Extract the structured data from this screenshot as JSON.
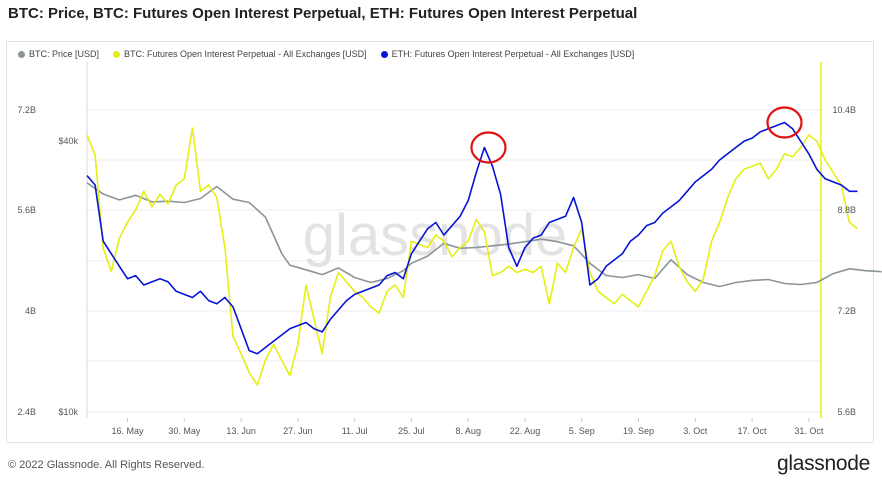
{
  "title": "BTC: Price, BTC: Futures Open Interest Perpetual, ETH: Futures Open Interest Perpetual",
  "footer": "© 2022 Glassnode. All Rights Reserved.",
  "logo": "glassnode",
  "watermark": "glassnode",
  "colors": {
    "price": "#8c9599",
    "btc_oi": "#e5ef12",
    "eth_oi": "#0714d6",
    "highlight": "#e01010"
  },
  "chart_data": {
    "type": "line",
    "x_ticks": [
      "16. May",
      "30. May",
      "13. Jun",
      "27. Jun",
      "11. Jul",
      "25. Jul",
      "8. Aug",
      "22. Aug",
      "5. Sep",
      "19. Sep",
      "3. Oct",
      "17. Oct",
      "31. Oct"
    ],
    "y_left_oi": {
      "ticks": [
        "7.2B",
        "5.6B",
        "4B",
        "2.4B"
      ]
    },
    "y_left_price": {
      "ticks": [
        "$40k",
        "$10k"
      ],
      "scale": "log"
    },
    "y_right": {
      "ticks": [
        "10.4B",
        "8.8B",
        "7.2B",
        "5.6B"
      ]
    },
    "grid": true,
    "legend_position": "top-left",
    "x_range": [
      "2022-05-06",
      "2022-11-03"
    ],
    "series": [
      {
        "name": "BTC: Price [USD]",
        "axis": "price",
        "values": [
          [
            0,
            32300
          ],
          [
            4,
            30500
          ],
          [
            8,
            29600
          ],
          [
            12,
            30300
          ],
          [
            16,
            29300
          ],
          [
            20,
            29400
          ],
          [
            24,
            29200
          ],
          [
            28,
            29800
          ],
          [
            32,
            31700
          ],
          [
            36,
            29700
          ],
          [
            40,
            29200
          ],
          [
            44,
            27100
          ],
          [
            48,
            22500
          ],
          [
            50,
            21200
          ],
          [
            54,
            20700
          ],
          [
            58,
            20200
          ],
          [
            62,
            20900
          ],
          [
            66,
            19900
          ],
          [
            70,
            19400
          ],
          [
            74,
            19800
          ],
          [
            78,
            20600
          ],
          [
            80,
            21400
          ],
          [
            84,
            22200
          ],
          [
            88,
            23700
          ],
          [
            92,
            23100
          ],
          [
            96,
            23200
          ],
          [
            100,
            23400
          ],
          [
            104,
            23600
          ],
          [
            108,
            23900
          ],
          [
            112,
            24200
          ],
          [
            116,
            23900
          ],
          [
            120,
            23400
          ],
          [
            124,
            21400
          ],
          [
            128,
            20100
          ],
          [
            132,
            19900
          ],
          [
            136,
            20200
          ],
          [
            140,
            19800
          ],
          [
            144,
            21800
          ],
          [
            148,
            20200
          ],
          [
            152,
            19400
          ],
          [
            156,
            19000
          ],
          [
            160,
            19400
          ],
          [
            164,
            19600
          ],
          [
            168,
            19700
          ],
          [
            172,
            19300
          ],
          [
            176,
            19200
          ],
          [
            180,
            19400
          ],
          [
            184,
            20300
          ],
          [
            188,
            20800
          ],
          [
            192,
            20600
          ],
          [
            196,
            20500
          ]
        ]
      },
      {
        "name": "BTC: Futures Open Interest Perpetual - All Exchanges [USD]",
        "axis": "oi",
        "values": [
          [
            0,
            6.8
          ],
          [
            2,
            6.48
          ],
          [
            4,
            4.99
          ],
          [
            6,
            4.62
          ],
          [
            8,
            5.15
          ],
          [
            10,
            5.41
          ],
          [
            12,
            5.6
          ],
          [
            14,
            5.9
          ],
          [
            16,
            5.65
          ],
          [
            18,
            5.85
          ],
          [
            20,
            5.7
          ],
          [
            22,
            6.0
          ],
          [
            24,
            6.1
          ],
          [
            26,
            6.91
          ],
          [
            28,
            5.9
          ],
          [
            30,
            6.0
          ],
          [
            32,
            5.8
          ],
          [
            34,
            5.0
          ],
          [
            36,
            3.58
          ],
          [
            38,
            3.3
          ],
          [
            40,
            3.0
          ],
          [
            42,
            2.8
          ],
          [
            44,
            3.2
          ],
          [
            46,
            3.45
          ],
          [
            48,
            3.2
          ],
          [
            50,
            2.95
          ],
          [
            52,
            3.45
          ],
          [
            54,
            4.4
          ],
          [
            56,
            3.85
          ],
          [
            58,
            3.3
          ],
          [
            60,
            4.2
          ],
          [
            62,
            4.6
          ],
          [
            64,
            4.45
          ],
          [
            66,
            4.3
          ],
          [
            68,
            4.2
          ],
          [
            70,
            4.05
          ],
          [
            72,
            3.95
          ],
          [
            74,
            4.3
          ],
          [
            76,
            4.4
          ],
          [
            78,
            4.2
          ],
          [
            80,
            5.1
          ],
          [
            82,
            5.05
          ],
          [
            84,
            5.0
          ],
          [
            86,
            5.2
          ],
          [
            88,
            5.1
          ],
          [
            90,
            4.85
          ],
          [
            92,
            5.0
          ],
          [
            94,
            5.1
          ],
          [
            96,
            5.45
          ],
          [
            98,
            5.25
          ],
          [
            100,
            4.55
          ],
          [
            102,
            4.6
          ],
          [
            104,
            4.7
          ],
          [
            106,
            4.6
          ],
          [
            108,
            4.65
          ],
          [
            110,
            4.6
          ],
          [
            112,
            4.7
          ],
          [
            114,
            4.1
          ],
          [
            116,
            4.75
          ],
          [
            118,
            4.6
          ],
          [
            120,
            5.0
          ],
          [
            122,
            5.3
          ],
          [
            124,
            4.6
          ],
          [
            126,
            4.3
          ],
          [
            128,
            4.2
          ],
          [
            130,
            4.1
          ],
          [
            132,
            4.25
          ],
          [
            134,
            4.15
          ],
          [
            136,
            4.05
          ],
          [
            138,
            4.3
          ],
          [
            140,
            4.55
          ],
          [
            142,
            4.95
          ],
          [
            144,
            5.1
          ],
          [
            146,
            4.7
          ],
          [
            148,
            4.45
          ],
          [
            150,
            4.3
          ],
          [
            152,
            4.5
          ],
          [
            154,
            5.1
          ],
          [
            156,
            5.4
          ],
          [
            158,
            5.8
          ],
          [
            160,
            6.1
          ],
          [
            162,
            6.25
          ],
          [
            164,
            6.3
          ],
          [
            166,
            6.35
          ],
          [
            168,
            6.1
          ],
          [
            170,
            6.25
          ],
          [
            172,
            6.5
          ],
          [
            174,
            6.45
          ],
          [
            176,
            6.6
          ],
          [
            178,
            6.8
          ],
          [
            180,
            6.7
          ],
          [
            182,
            6.4
          ],
          [
            184,
            6.2
          ],
          [
            186,
            6.0
          ],
          [
            188,
            5.4
          ],
          [
            190,
            5.3
          ]
        ]
      },
      {
        "name": "ETH: Futures Open Interest Perpetual - All Exchanges [USD]",
        "axis": "eth_oi",
        "values": [
          [
            0,
            9.35
          ],
          [
            2,
            9.2
          ],
          [
            4,
            8.3
          ],
          [
            6,
            8.1
          ],
          [
            8,
            7.9
          ],
          [
            10,
            7.7
          ],
          [
            12,
            7.75
          ],
          [
            14,
            7.6
          ],
          [
            16,
            7.65
          ],
          [
            18,
            7.7
          ],
          [
            20,
            7.65
          ],
          [
            22,
            7.5
          ],
          [
            24,
            7.45
          ],
          [
            26,
            7.4
          ],
          [
            28,
            7.5
          ],
          [
            30,
            7.35
          ],
          [
            32,
            7.3
          ],
          [
            34,
            7.4
          ],
          [
            36,
            7.25
          ],
          [
            38,
            6.9
          ],
          [
            40,
            6.55
          ],
          [
            42,
            6.5
          ],
          [
            44,
            6.6
          ],
          [
            46,
            6.7
          ],
          [
            48,
            6.8
          ],
          [
            50,
            6.9
          ],
          [
            52,
            6.95
          ],
          [
            54,
            7.0
          ],
          [
            56,
            6.9
          ],
          [
            58,
            6.85
          ],
          [
            60,
            7.05
          ],
          [
            62,
            7.2
          ],
          [
            64,
            7.35
          ],
          [
            66,
            7.45
          ],
          [
            68,
            7.5
          ],
          [
            70,
            7.55
          ],
          [
            72,
            7.6
          ],
          [
            74,
            7.75
          ],
          [
            76,
            7.8
          ],
          [
            78,
            7.7
          ],
          [
            80,
            8.1
          ],
          [
            82,
            8.3
          ],
          [
            84,
            8.5
          ],
          [
            86,
            8.6
          ],
          [
            88,
            8.4
          ],
          [
            90,
            8.55
          ],
          [
            92,
            8.7
          ],
          [
            94,
            8.95
          ],
          [
            96,
            9.4
          ],
          [
            98,
            9.8
          ],
          [
            100,
            9.5
          ],
          [
            102,
            9.05
          ],
          [
            104,
            8.2
          ],
          [
            106,
            7.9
          ],
          [
            108,
            8.2
          ],
          [
            110,
            8.35
          ],
          [
            112,
            8.4
          ],
          [
            114,
            8.6
          ],
          [
            116,
            8.65
          ],
          [
            118,
            8.7
          ],
          [
            120,
            9.0
          ],
          [
            122,
            8.6
          ],
          [
            124,
            7.6
          ],
          [
            126,
            7.7
          ],
          [
            128,
            7.9
          ],
          [
            130,
            8.0
          ],
          [
            132,
            8.1
          ],
          [
            134,
            8.3
          ],
          [
            136,
            8.4
          ],
          [
            138,
            8.55
          ],
          [
            140,
            8.6
          ],
          [
            142,
            8.75
          ],
          [
            144,
            8.85
          ],
          [
            146,
            8.95
          ],
          [
            148,
            9.1
          ],
          [
            150,
            9.25
          ],
          [
            152,
            9.35
          ],
          [
            154,
            9.45
          ],
          [
            156,
            9.6
          ],
          [
            158,
            9.7
          ],
          [
            160,
            9.8
          ],
          [
            162,
            9.9
          ],
          [
            164,
            9.95
          ],
          [
            166,
            10.05
          ],
          [
            168,
            10.1
          ],
          [
            170,
            10.15
          ],
          [
            172,
            10.2
          ],
          [
            174,
            10.1
          ],
          [
            176,
            9.9
          ],
          [
            178,
            9.7
          ],
          [
            180,
            9.45
          ],
          [
            182,
            9.3
          ],
          [
            184,
            9.25
          ],
          [
            186,
            9.2
          ],
          [
            188,
            9.1
          ],
          [
            190,
            9.1
          ]
        ]
      }
    ],
    "highlights": [
      {
        "series": "ETH: Futures Open Interest Perpetual - All Exchanges [USD]",
        "x": 99,
        "y": 9.8
      },
      {
        "series": "ETH: Futures Open Interest Perpetual - All Exchanges [USD]",
        "x": 172,
        "y": 10.2
      }
    ]
  }
}
